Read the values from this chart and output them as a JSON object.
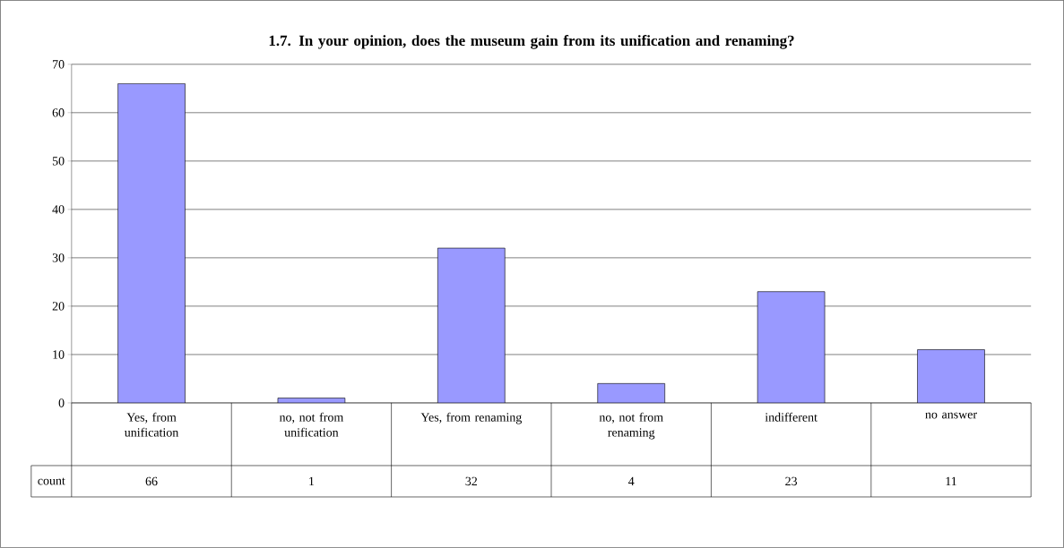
{
  "chart_data": {
    "type": "bar",
    "title": "1.7. In your opinion, does the museum gain from its unification and renaming?",
    "categories": [
      "Yes, from unification",
      "no, not from unification",
      "Yes, from renaming",
      "no,  not from renaming",
      "indifferent",
      "no answer"
    ],
    "series": [
      {
        "name": "count",
        "color": "#9999ff",
        "values": [
          66,
          1,
          32,
          4,
          23,
          11
        ]
      }
    ],
    "ylim": [
      0,
      70
    ],
    "yticks": [
      0,
      10,
      20,
      30,
      40,
      50,
      60,
      70
    ],
    "grid": "y",
    "data_labels": true
  }
}
